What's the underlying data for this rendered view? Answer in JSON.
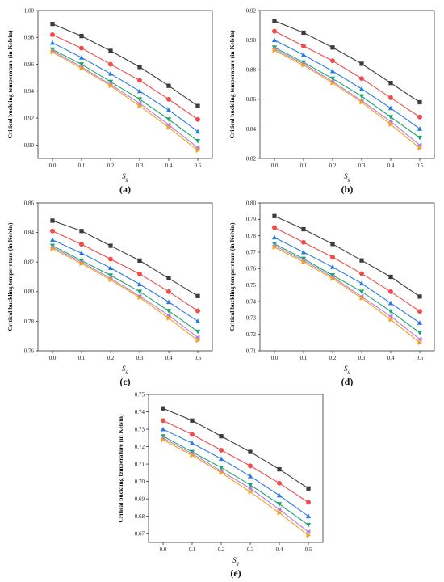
{
  "figure": {
    "colors": [
      "#3c3c3c",
      "#f04a4a",
      "#2a7be0",
      "#1aa86a",
      "#b57ed8",
      "#f4a020"
    ],
    "markers": [
      "square",
      "circle",
      "triangle-up",
      "triangle-down",
      "triangle-left",
      "triangle-right"
    ]
  },
  "chart_data": [
    {
      "type": "line",
      "panel_label": "(a)",
      "ylabel": "Critical buckling temperature (in Kelvin)",
      "xlabel": "S",
      "xlabel_sub": "g",
      "x": [
        0.0,
        0.1,
        0.2,
        0.3,
        0.4,
        0.5
      ],
      "xticks": [
        "0.0",
        "0.1",
        "0.2",
        "0.3",
        "0.4",
        "0.5"
      ],
      "xlim": [
        -0.05,
        0.55
      ],
      "yticks": [
        "0.90",
        "0.92",
        "0.94",
        "0.96",
        "0.98",
        "1.00"
      ],
      "ylim": [
        0.89,
        1.0
      ],
      "series": [
        {
          "values": [
            0.99,
            0.981,
            0.97,
            0.958,
            0.944,
            0.929
          ]
        },
        {
          "values": [
            0.982,
            0.972,
            0.96,
            0.948,
            0.934,
            0.919
          ]
        },
        {
          "values": [
            0.976,
            0.965,
            0.953,
            0.94,
            0.926,
            0.91
          ]
        },
        {
          "values": [
            0.971,
            0.96,
            0.947,
            0.934,
            0.919,
            0.903
          ]
        },
        {
          "values": [
            0.97,
            0.958,
            0.945,
            0.931,
            0.915,
            0.898
          ]
        },
        {
          "values": [
            0.969,
            0.957,
            0.944,
            0.929,
            0.913,
            0.896
          ]
        }
      ]
    },
    {
      "type": "line",
      "panel_label": "(b)",
      "ylabel": "Critical buckling temperature (in Kelvin)",
      "xlabel": "S",
      "xlabel_sub": "g",
      "x": [
        0.0,
        0.1,
        0.2,
        0.3,
        0.4,
        0.5
      ],
      "xticks": [
        "0.0",
        "0.1",
        "0.2",
        "0.3",
        "0.4",
        "0.5"
      ],
      "xlim": [
        -0.05,
        0.55
      ],
      "yticks": [
        "0.82",
        "0.84",
        "0.86",
        "0.88",
        "0.90",
        "0.92"
      ],
      "ylim": [
        0.82,
        0.92
      ],
      "series": [
        {
          "values": [
            0.913,
            0.905,
            0.895,
            0.884,
            0.871,
            0.858
          ]
        },
        {
          "values": [
            0.906,
            0.896,
            0.886,
            0.874,
            0.861,
            0.848
          ]
        },
        {
          "values": [
            0.9,
            0.89,
            0.879,
            0.867,
            0.854,
            0.84
          ]
        },
        {
          "values": [
            0.895,
            0.885,
            0.874,
            0.862,
            0.848,
            0.834
          ]
        },
        {
          "values": [
            0.894,
            0.884,
            0.872,
            0.859,
            0.845,
            0.829
          ]
        },
        {
          "values": [
            0.893,
            0.883,
            0.871,
            0.858,
            0.843,
            0.827
          ]
        }
      ]
    },
    {
      "type": "line",
      "panel_label": "(c)",
      "ylabel": "Critical buckling temperature (in Kelvin)",
      "xlabel": "S",
      "xlabel_sub": "g",
      "x": [
        0.0,
        0.1,
        0.2,
        0.3,
        0.4,
        0.5
      ],
      "xticks": [
        "0.0",
        "0.1",
        "0.2",
        "0.3",
        "0.4",
        "0.5"
      ],
      "xlim": [
        -0.05,
        0.55
      ],
      "yticks": [
        "0.76",
        "0.78",
        "0.80",
        "0.82",
        "0.84",
        "0.86"
      ],
      "ylim": [
        0.76,
        0.86
      ],
      "series": [
        {
          "values": [
            0.848,
            0.841,
            0.831,
            0.821,
            0.809,
            0.797
          ]
        },
        {
          "values": [
            0.841,
            0.832,
            0.822,
            0.812,
            0.8,
            0.787
          ]
        },
        {
          "values": [
            0.835,
            0.826,
            0.816,
            0.805,
            0.793,
            0.78
          ]
        },
        {
          "values": [
            0.831,
            0.821,
            0.811,
            0.8,
            0.787,
            0.773
          ]
        },
        {
          "values": [
            0.83,
            0.82,
            0.809,
            0.797,
            0.784,
            0.769
          ]
        },
        {
          "values": [
            0.829,
            0.819,
            0.808,
            0.796,
            0.782,
            0.767
          ]
        }
      ]
    },
    {
      "type": "line",
      "panel_label": "(d)",
      "ylabel": "Critical buckling temperature (in Kelvin)",
      "xlabel": "S",
      "xlabel_sub": "g",
      "x": [
        0.0,
        0.1,
        0.2,
        0.3,
        0.4,
        0.5
      ],
      "xticks": [
        "0.0",
        "0.1",
        "0.2",
        "0.3",
        "0.4",
        "0.5"
      ],
      "xlim": [
        -0.05,
        0.55
      ],
      "yticks": [
        "0.71",
        "0.72",
        "0.73",
        "0.74",
        "0.75",
        "0.76",
        "0.77",
        "0.78",
        "0.79",
        "0.80"
      ],
      "ylim": [
        0.71,
        0.8
      ],
      "series": [
        {
          "values": [
            0.792,
            0.784,
            0.775,
            0.765,
            0.755,
            0.743
          ]
        },
        {
          "values": [
            0.785,
            0.776,
            0.767,
            0.757,
            0.746,
            0.734
          ]
        },
        {
          "values": [
            0.779,
            0.77,
            0.761,
            0.751,
            0.739,
            0.727
          ]
        },
        {
          "values": [
            0.775,
            0.766,
            0.756,
            0.746,
            0.734,
            0.721
          ]
        },
        {
          "values": [
            0.774,
            0.765,
            0.755,
            0.743,
            0.731,
            0.717
          ]
        },
        {
          "values": [
            0.773,
            0.764,
            0.754,
            0.742,
            0.729,
            0.715
          ]
        }
      ]
    },
    {
      "type": "line",
      "panel_label": "(e)",
      "ylabel": "Critical buckling temperature (in Kelvin)",
      "xlabel": "S",
      "xlabel_sub": "g",
      "x": [
        0.0,
        0.1,
        0.2,
        0.3,
        0.4,
        0.5
      ],
      "xticks": [
        "0.0",
        "0.1",
        "0.2",
        "0.3",
        "0.4",
        "0.5"
      ],
      "xlim": [
        -0.05,
        0.55
      ],
      "yticks": [
        "0.67",
        "0.68",
        "0.69",
        "0.70",
        "0.71",
        "0.72",
        "0.73",
        "0.74",
        "0.75"
      ],
      "ylim": [
        0.665,
        0.75
      ],
      "series": [
        {
          "values": [
            0.742,
            0.735,
            0.726,
            0.717,
            0.707,
            0.696
          ]
        },
        {
          "values": [
            0.735,
            0.727,
            0.718,
            0.709,
            0.699,
            0.688
          ]
        },
        {
          "values": [
            0.73,
            0.722,
            0.713,
            0.703,
            0.692,
            0.68
          ]
        },
        {
          "values": [
            0.726,
            0.717,
            0.708,
            0.698,
            0.687,
            0.675
          ]
        },
        {
          "values": [
            0.725,
            0.716,
            0.706,
            0.696,
            0.684,
            0.671
          ]
        },
        {
          "values": [
            0.724,
            0.715,
            0.705,
            0.694,
            0.682,
            0.669
          ]
        }
      ]
    }
  ]
}
